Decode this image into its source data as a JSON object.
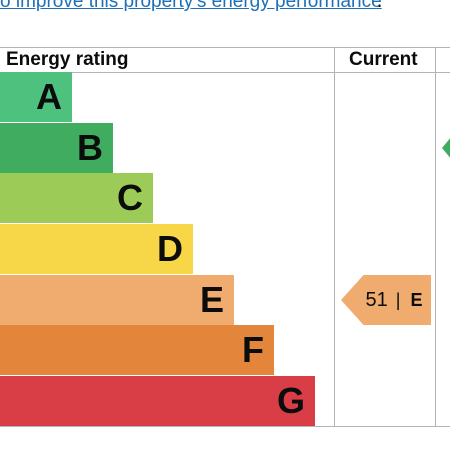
{
  "link": {
    "text": "o improve this property's energy performance",
    "trailing": "."
  },
  "table": {
    "header_rating": "Energy rating",
    "header_current": "Current"
  },
  "bands": [
    {
      "letter": "A",
      "color": "#4ec17f"
    },
    {
      "letter": "B",
      "color": "#3fac5f"
    },
    {
      "letter": "C",
      "color": "#9ccc57"
    },
    {
      "letter": "D",
      "color": "#f7d748"
    },
    {
      "letter": "E",
      "color": "#f0ac6e"
    },
    {
      "letter": "F",
      "color": "#e3853a"
    },
    {
      "letter": "G",
      "color": "#d93d45"
    }
  ],
  "current": {
    "score": "51",
    "separator": "|",
    "band": "E",
    "color": "#f0ac6e"
  },
  "potential": {
    "band": "B",
    "color": "#3fac5f"
  }
}
